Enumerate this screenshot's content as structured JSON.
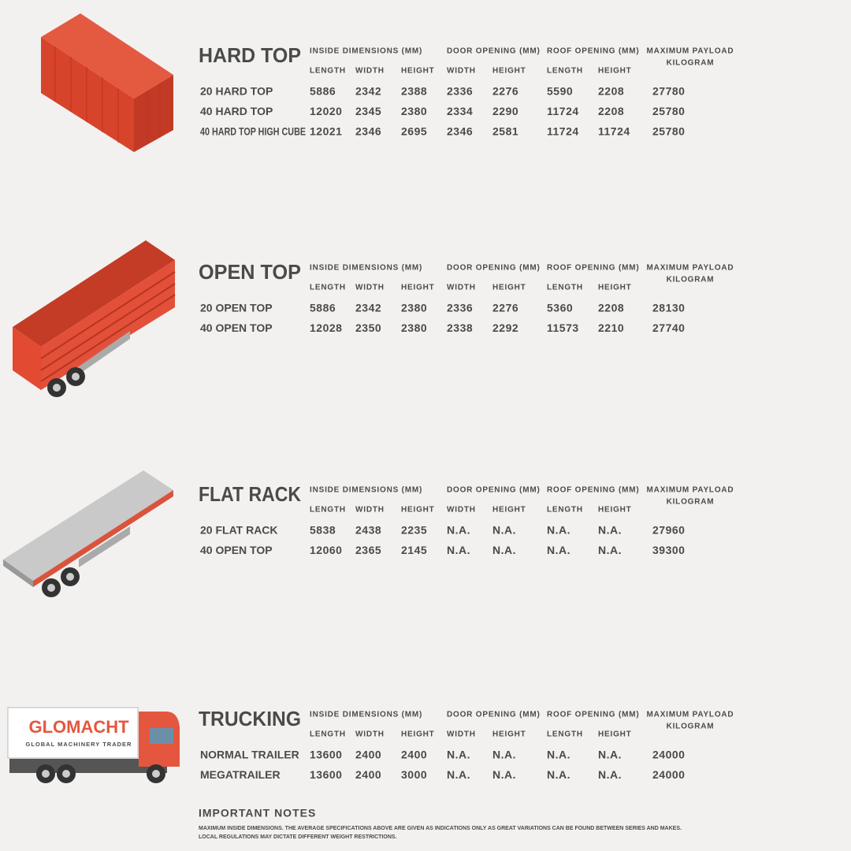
{
  "sections": [
    {
      "title": "HARD TOP",
      "groups": [
        "INSIDE DIMENSIONS (MM)",
        "DOOR OPENING (MM)",
        "ROOF OPENING (MM)"
      ],
      "payload": [
        "MAXIMUM PAYLOAD",
        "KILOGRAM"
      ],
      "columns": [
        "LENGTH",
        "WIDTH",
        "HEIGHT",
        "WIDTH",
        "HEIGHT",
        "LENGTH",
        "HEIGHT"
      ],
      "rows": [
        [
          "20 HARD TOP",
          "5886",
          "2342",
          "2388",
          "2336",
          "2276",
          "5590",
          "2208",
          "27780"
        ],
        [
          "40 HARD TOP",
          "12020",
          "2345",
          "2380",
          "2334",
          "2290",
          "11724",
          "2208",
          "25780"
        ],
        [
          "40 HARD TOP HIGH CUBE",
          "12021",
          "2346",
          "2695",
          "2346",
          "2581",
          "11724",
          "11724",
          "25780"
        ]
      ]
    },
    {
      "title": "OPEN TOP",
      "groups": [
        "INSIDE DIMENSIONS (MM)",
        "DOOR OPENING (MM)",
        "ROOF OPENING (MM)"
      ],
      "payload": [
        "MAXIMUM PAYLOAD",
        "KILOGRAM"
      ],
      "columns": [
        "LENGTH",
        "WIDTH",
        "HEIGHT",
        "WIDTH",
        "HEIGHT",
        "LENGTH",
        "HEIGHT"
      ],
      "rows": [
        [
          "20 OPEN TOP",
          "5886",
          "2342",
          "2380",
          "2336",
          "2276",
          "5360",
          "2208",
          "28130"
        ],
        [
          "40 OPEN TOP",
          "12028",
          "2350",
          "2380",
          "2338",
          "2292",
          "11573",
          "2210",
          "27740"
        ]
      ]
    },
    {
      "title": "FLAT RACK",
      "groups": [
        "INSIDE DIMENSIONS (MM)",
        "DOOR OPENING (MM)",
        "ROOF OPENING (MM)"
      ],
      "payload": [
        "MAXIMUM PAYLOAD",
        "KILOGRAM"
      ],
      "columns": [
        "LENGTH",
        "WIDTH",
        "HEIGHT",
        "WIDTH",
        "HEIGHT",
        "LENGTH",
        "HEIGHT"
      ],
      "rows": [
        [
          "20 FLAT RACK",
          "5838",
          "2438",
          "2235",
          "N.A.",
          "N.A.",
          "N.A.",
          "N.A.",
          "27960"
        ],
        [
          "40 OPEN TOP",
          "12060",
          "2365",
          "2145",
          "N.A.",
          "N.A.",
          "N.A.",
          "N.A.",
          "39300"
        ]
      ]
    },
    {
      "title": "TRUCKING",
      "groups": [
        "INSIDE DIMENSIONS (MM)",
        "DOOR OPENING (MM)",
        "ROOF OPENING (MM)"
      ],
      "payload": [
        "MAXIMUM PAYLOAD",
        "KILOGRAM"
      ],
      "columns": [
        "LENGTH",
        "WIDTH",
        "HEIGHT",
        "WIDTH",
        "HEIGHT",
        "LENGTH",
        "HEIGHT"
      ],
      "rows": [
        [
          "NORMAL TRAILER",
          "13600",
          "2400",
          "2400",
          "N.A.",
          "N.A.",
          "N.A.",
          "N.A.",
          "24000"
        ],
        [
          "MEGATRAILER",
          "13600",
          "2400",
          "3000",
          "N.A.",
          "N.A.",
          "N.A.",
          "N.A.",
          "24000"
        ]
      ]
    }
  ],
  "logo": {
    "name": "GLOMACHT",
    "tagline": "GLOBAL MACHINERY TRADER"
  },
  "notes": {
    "title": "IMPORTANT NOTES",
    "lines": [
      "MAXIMUM INSIDE DIMENSIONS. THE AVERAGE SPECIFICATIONS ABOVE ARE GIVEN AS INDICATIONS ONLY AS GREAT VARIATIONS CAN BE FOUND BETWEEN SERIES AND MAKES.",
      "LOCAL REGULATIONS MAY DICTATE DIFFERENT WEIGHT RESTRICTIONS."
    ]
  }
}
